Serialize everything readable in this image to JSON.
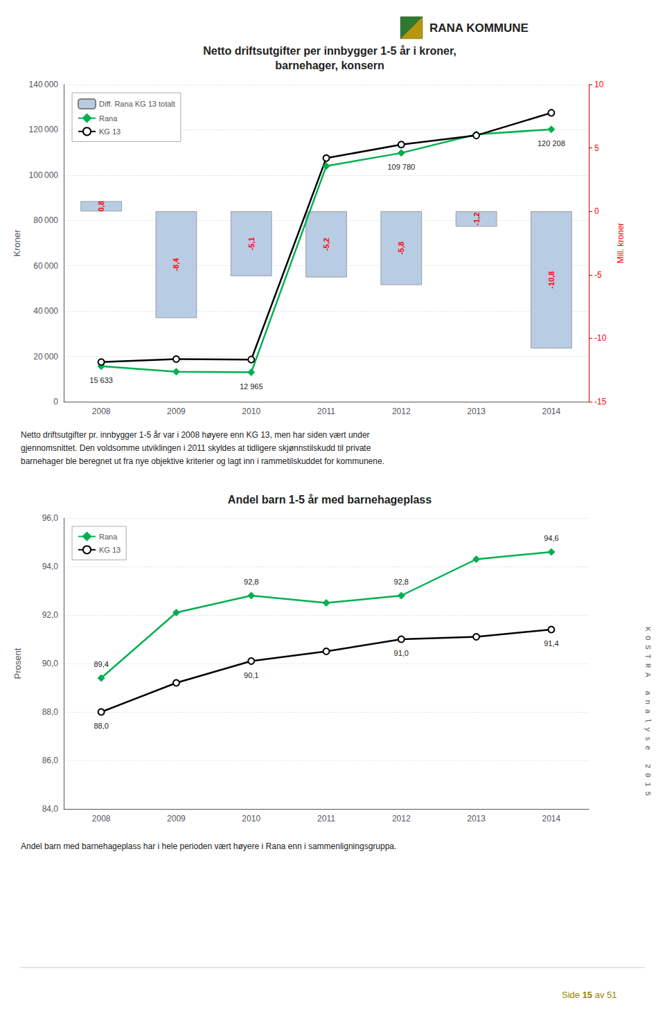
{
  "header": "RANA KOMMUNE",
  "side_text": "K O S T R A   a n a l y s e   2 0 1 5",
  "footer": [
    "Side ",
    "15",
    " av 51"
  ],
  "chart_data": [
    {
      "type": "line",
      "title": "Netto driftsutgifter per innbygger 1-5 år i kroner,\nbarnehager, konsern",
      "categories": [
        "2008",
        "2009",
        "2010",
        "2011",
        "2012",
        "2013",
        "2014"
      ],
      "series": [
        {
          "name": "Diff. Rana KG 13 totalt",
          "type": "bar",
          "axis": "y2",
          "color": "#b8cce4",
          "values": [
            0.8,
            -8.4,
            -5.1,
            -5.2,
            -5.8,
            -1.2,
            -10.8
          ],
          "value_labels": [
            "0,8",
            "-8,4",
            "-5,1",
            "-5,2",
            "-5,8",
            "-1,2",
            "-10,8"
          ],
          "data_labels": true
        },
        {
          "name": "Rana",
          "type": "line",
          "color": "#00b050",
          "marker": "diamond",
          "values": [
            15633,
            13200,
            12965,
            104000,
            109780,
            118000,
            120208
          ],
          "value_labels": [
            "15 633",
            null,
            "12 965",
            null,
            "109 780",
            null,
            "120 208"
          ],
          "data_labels": true
        },
        {
          "name": "KG 13",
          "type": "line",
          "color": "#000000",
          "marker": "circle",
          "values": [
            17500,
            18800,
            18600,
            107500,
            113500,
            117500,
            127500
          ]
        }
      ],
      "ylabel": "Kroner",
      "y2label": "Mill. kroner",
      "ylim": [
        0,
        140000
      ],
      "yticks": [
        0,
        {
          "value": 20000,
          "label": "20 000"
        },
        {
          "value": 40000,
          "label": "40 000"
        },
        {
          "value": 60000,
          "label": "60 000"
        },
        {
          "value": 80000,
          "label": "80 000"
        },
        {
          "value": 100000,
          "label": "100 000"
        },
        {
          "value": 120000,
          "label": "120 000"
        },
        {
          "value": 140000,
          "label": "140 000"
        }
      ],
      "y2lim": [
        -15,
        10
      ],
      "y2ticks": [
        -15,
        -10,
        -5,
        0,
        5,
        10
      ],
      "grid": true,
      "legend": "upper left",
      "annotations": [
        "Netto driftsutgifter pr. innbygger 1-5 år var i 2008 høyere enn KG 13, men har siden vært under\ngjennomsnittet. Den voldsomme utviklingen i 2011 skyldes at tidligere skjønnstilskudd til private\nbarnehager ble beregnet ut fra nye objektive kriterier og lagt inn i rammetilskuddet for kommunene."
      ]
    },
    {
      "type": "line",
      "title": "Andel barn 1-5 år med barnehageplass",
      "categories": [
        "2008",
        "2009",
        "2010",
        "2011",
        "2012",
        "2013",
        "2014"
      ],
      "series": [
        {
          "name": "Rana",
          "color": "#00b050",
          "marker": "diamond",
          "values": [
            89.4,
            92.1,
            92.8,
            92.5,
            92.8,
            94.3,
            94.6
          ],
          "value_labels": [
            "89,4",
            null,
            "92,8",
            null,
            "92,8",
            null,
            "94,6"
          ],
          "data_labels": true
        },
        {
          "name": "KG 13",
          "color": "#000000",
          "marker": "circle",
          "values": [
            88.0,
            89.2,
            90.1,
            90.5,
            91.0,
            91.1,
            91.4
          ],
          "value_labels": [
            "88,0",
            null,
            "90,1",
            null,
            "91,0",
            null,
            "91,4"
          ],
          "data_labels": true
        }
      ],
      "ylabel": "Prosent",
      "ylim": [
        84.0,
        96.0
      ],
      "yticks": [
        {
          "value": 84.0,
          "label": "84,0"
        },
        {
          "value": 86.0,
          "label": "86,0"
        },
        {
          "value": 88.0,
          "label": "88,0"
        },
        {
          "value": 90.0,
          "label": "90,0"
        },
        {
          "value": 92.0,
          "label": "92,0"
        },
        {
          "value": 94.0,
          "label": "94,0"
        },
        {
          "value": 96.0,
          "label": "96,0"
        }
      ],
      "grid": true,
      "legend": "upper left",
      "annotations": [
        "Andel barn med barnehageplass har i hele perioden vært høyere i Rana enn i sammenligningsgruppa."
      ]
    }
  ]
}
